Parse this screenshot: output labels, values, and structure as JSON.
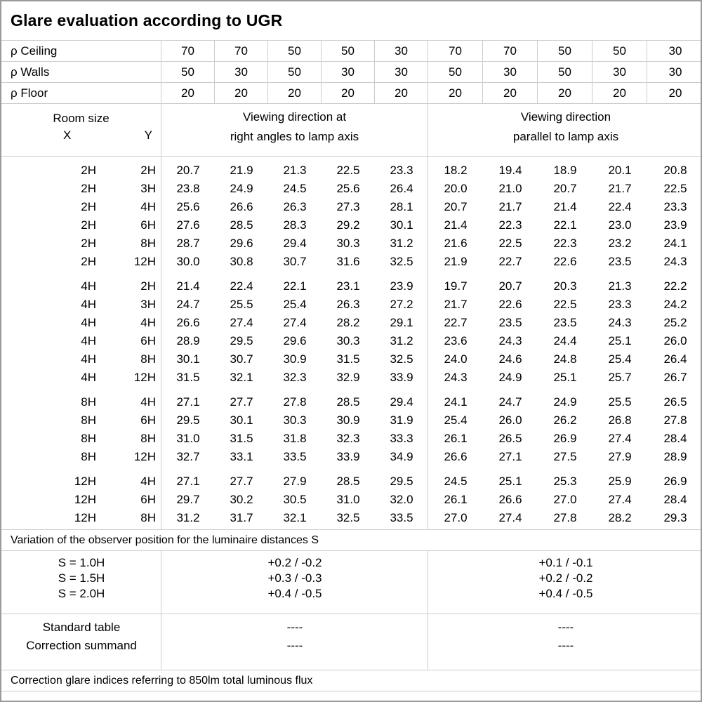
{
  "title": "Glare evaluation according to UGR",
  "reflectance": {
    "rows": [
      {
        "label": "ρ Ceiling",
        "values": [
          "70",
          "70",
          "50",
          "50",
          "30",
          "70",
          "70",
          "50",
          "50",
          "30"
        ]
      },
      {
        "label": "ρ Walls",
        "values": [
          "50",
          "30",
          "50",
          "30",
          "30",
          "50",
          "30",
          "50",
          "30",
          "30"
        ]
      },
      {
        "label": "ρ Floor",
        "values": [
          "20",
          "20",
          "20",
          "20",
          "20",
          "20",
          "20",
          "20",
          "20",
          "20"
        ]
      }
    ]
  },
  "header": {
    "room_size": "Room size",
    "x_label": "X",
    "y_label": "Y",
    "left_group": [
      "Viewing direction at",
      "right angles to lamp axis"
    ],
    "right_group": [
      "Viewing direction",
      "parallel to lamp axis"
    ]
  },
  "ugr_table": {
    "groups": [
      {
        "rows": [
          {
            "x": "2H",
            "y": "2H",
            "values": [
              "20.7",
              "21.9",
              "21.3",
              "22.5",
              "23.3",
              "18.2",
              "19.4",
              "18.9",
              "20.1",
              "20.8"
            ]
          },
          {
            "x": "2H",
            "y": "3H",
            "values": [
              "23.8",
              "24.9",
              "24.5",
              "25.6",
              "26.4",
              "20.0",
              "21.0",
              "20.7",
              "21.7",
              "22.5"
            ]
          },
          {
            "x": "2H",
            "y": "4H",
            "values": [
              "25.6",
              "26.6",
              "26.3",
              "27.3",
              "28.1",
              "20.7",
              "21.7",
              "21.4",
              "22.4",
              "23.3"
            ]
          },
          {
            "x": "2H",
            "y": "6H",
            "values": [
              "27.6",
              "28.5",
              "28.3",
              "29.2",
              "30.1",
              "21.4",
              "22.3",
              "22.1",
              "23.0",
              "23.9"
            ]
          },
          {
            "x": "2H",
            "y": "8H",
            "values": [
              "28.7",
              "29.6",
              "29.4",
              "30.3",
              "31.2",
              "21.6",
              "22.5",
              "22.3",
              "23.2",
              "24.1"
            ]
          },
          {
            "x": "2H",
            "y": "12H",
            "values": [
              "30.0",
              "30.8",
              "30.7",
              "31.6",
              "32.5",
              "21.9",
              "22.7",
              "22.6",
              "23.5",
              "24.3"
            ]
          }
        ]
      },
      {
        "rows": [
          {
            "x": "4H",
            "y": "2H",
            "values": [
              "21.4",
              "22.4",
              "22.1",
              "23.1",
              "23.9",
              "19.7",
              "20.7",
              "20.3",
              "21.3",
              "22.2"
            ]
          },
          {
            "x": "4H",
            "y": "3H",
            "values": [
              "24.7",
              "25.5",
              "25.4",
              "26.3",
              "27.2",
              "21.7",
              "22.6",
              "22.5",
              "23.3",
              "24.2"
            ]
          },
          {
            "x": "4H",
            "y": "4H",
            "values": [
              "26.6",
              "27.4",
              "27.4",
              "28.2",
              "29.1",
              "22.7",
              "23.5",
              "23.5",
              "24.3",
              "25.2"
            ]
          },
          {
            "x": "4H",
            "y": "6H",
            "values": [
              "28.9",
              "29.5",
              "29.6",
              "30.3",
              "31.2",
              "23.6",
              "24.3",
              "24.4",
              "25.1",
              "26.0"
            ]
          },
          {
            "x": "4H",
            "y": "8H",
            "values": [
              "30.1",
              "30.7",
              "30.9",
              "31.5",
              "32.5",
              "24.0",
              "24.6",
              "24.8",
              "25.4",
              "26.4"
            ]
          },
          {
            "x": "4H",
            "y": "12H",
            "values": [
              "31.5",
              "32.1",
              "32.3",
              "32.9",
              "33.9",
              "24.3",
              "24.9",
              "25.1",
              "25.7",
              "26.7"
            ]
          }
        ]
      },
      {
        "rows": [
          {
            "x": "8H",
            "y": "4H",
            "values": [
              "27.1",
              "27.7",
              "27.8",
              "28.5",
              "29.4",
              "24.1",
              "24.7",
              "24.9",
              "25.5",
              "26.5"
            ]
          },
          {
            "x": "8H",
            "y": "6H",
            "values": [
              "29.5",
              "30.1",
              "30.3",
              "30.9",
              "31.9",
              "25.4",
              "26.0",
              "26.2",
              "26.8",
              "27.8"
            ]
          },
          {
            "x": "8H",
            "y": "8H",
            "values": [
              "31.0",
              "31.5",
              "31.8",
              "32.3",
              "33.3",
              "26.1",
              "26.5",
              "26.9",
              "27.4",
              "28.4"
            ]
          },
          {
            "x": "8H",
            "y": "12H",
            "values": [
              "32.7",
              "33.1",
              "33.5",
              "33.9",
              "34.9",
              "26.6",
              "27.1",
              "27.5",
              "27.9",
              "28.9"
            ]
          }
        ]
      },
      {
        "rows": [
          {
            "x": "12H",
            "y": "4H",
            "values": [
              "27.1",
              "27.7",
              "27.9",
              "28.5",
              "29.5",
              "24.5",
              "25.1",
              "25.3",
              "25.9",
              "26.9"
            ]
          },
          {
            "x": "12H",
            "y": "6H",
            "values": [
              "29.7",
              "30.2",
              "30.5",
              "31.0",
              "32.0",
              "26.1",
              "26.6",
              "27.0",
              "27.4",
              "28.4"
            ]
          },
          {
            "x": "12H",
            "y": "8H",
            "values": [
              "31.2",
              "31.7",
              "32.1",
              "32.5",
              "33.5",
              "27.0",
              "27.4",
              "27.8",
              "28.2",
              "29.3"
            ]
          }
        ]
      }
    ]
  },
  "variation": {
    "note": "Variation of the observer position for the luminaire distances S",
    "rows": [
      {
        "label": "S = 1.0H",
        "right_angles": "+0.2 / -0.2",
        "parallel": "+0.1 / -0.1"
      },
      {
        "label": "S = 1.5H",
        "right_angles": "+0.3 / -0.3",
        "parallel": "+0.2 / -0.2"
      },
      {
        "label": "S = 2.0H",
        "right_angles": "+0.4 / -0.5",
        "parallel": "+0.4 / -0.5"
      }
    ]
  },
  "summary": {
    "rows": [
      {
        "label": "Standard table",
        "right_angles": "----",
        "parallel": "----"
      },
      {
        "label": "Correction summand",
        "right_angles": "----",
        "parallel": "----"
      }
    ]
  },
  "footer_note": "Correction glare indices referring to 850lm total luminous flux"
}
